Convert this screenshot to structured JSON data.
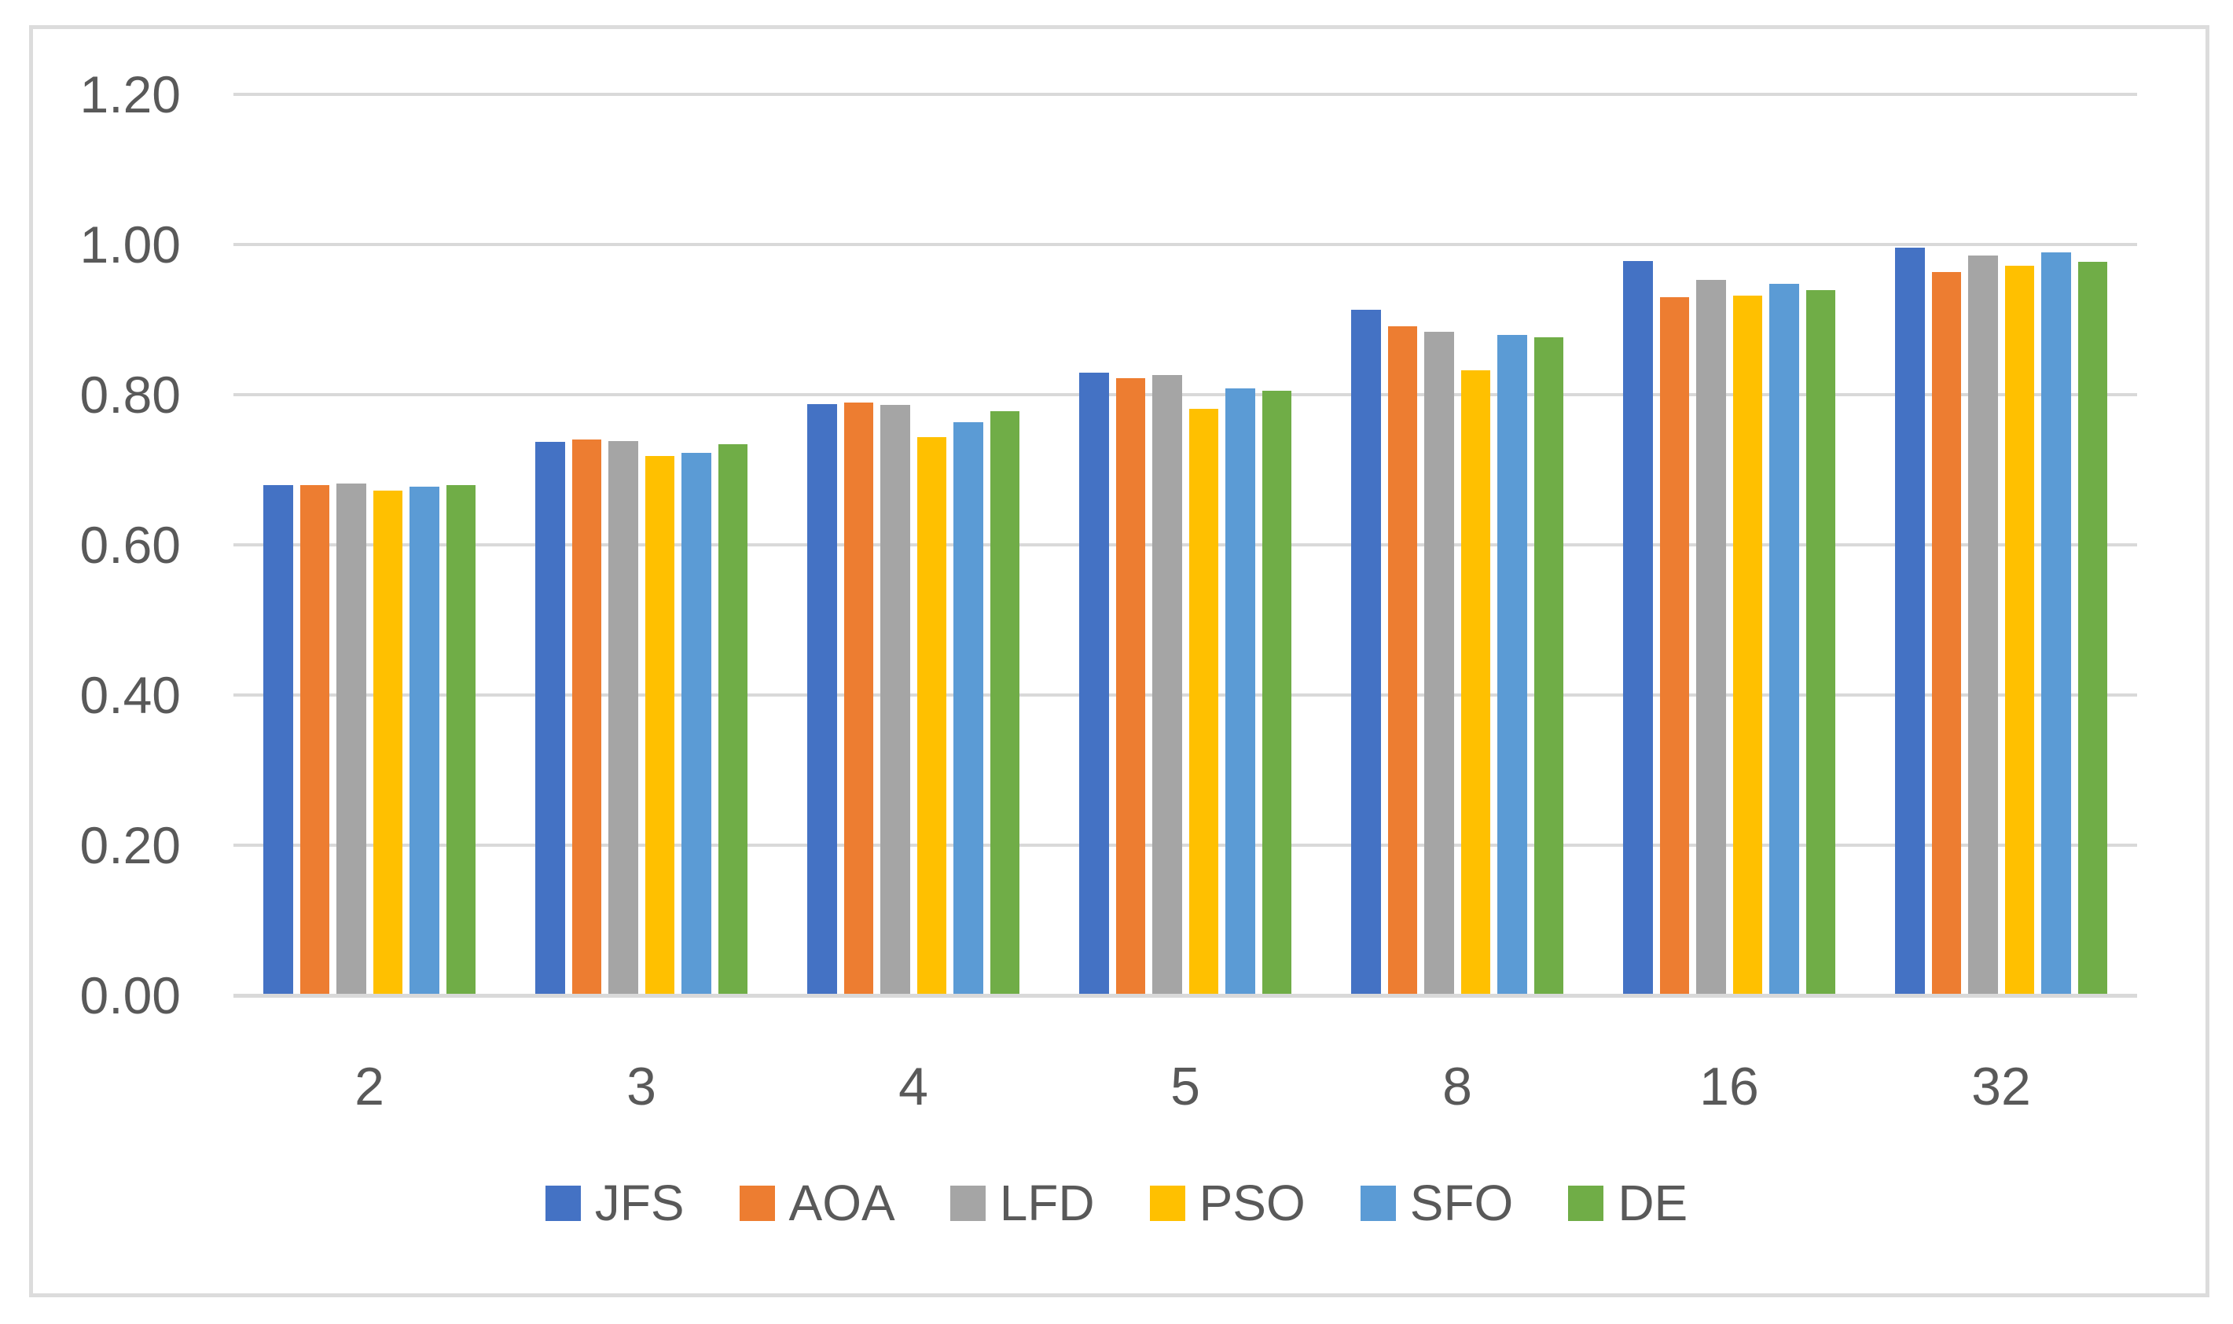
{
  "chart_data": {
    "type": "bar",
    "title": "",
    "xlabel": "",
    "ylabel": "",
    "categories": [
      "2",
      "3",
      "4",
      "5",
      "8",
      "16",
      "32"
    ],
    "series": [
      {
        "name": "JFS",
        "color": "#4472C4",
        "values": [
          0.678,
          0.735,
          0.785,
          0.827,
          0.911,
          0.976,
          0.994
        ]
      },
      {
        "name": "AOA",
        "color": "#ED7D31",
        "values": [
          0.678,
          0.738,
          0.787,
          0.82,
          0.889,
          0.928,
          0.961
        ]
      },
      {
        "name": "LFD",
        "color": "#A5A5A5",
        "values": [
          0.68,
          0.736,
          0.784,
          0.824,
          0.882,
          0.951,
          0.983
        ]
      },
      {
        "name": "PSO",
        "color": "#FFC000",
        "values": [
          0.67,
          0.716,
          0.741,
          0.779,
          0.83,
          0.93,
          0.97
        ]
      },
      {
        "name": "SFO",
        "color": "#5B9BD5",
        "values": [
          0.675,
          0.72,
          0.761,
          0.806,
          0.877,
          0.946,
          0.987
        ]
      },
      {
        "name": "DE",
        "color": "#70AD47",
        "values": [
          0.678,
          0.732,
          0.776,
          0.803,
          0.874,
          0.937,
          0.975
        ]
      }
    ],
    "ylim": [
      0.0,
      1.2
    ],
    "ytick_step": 0.2,
    "ytick_labels": [
      "0.00",
      "0.20",
      "0.40",
      "0.60",
      "0.80",
      "1.00",
      "1.20"
    ],
    "grid": true,
    "legend_position": "bottom",
    "gridline_color": "#D9D9D9",
    "axis_text_color": "#595959",
    "frame_border_color": "#DCDCDC",
    "background_color": "#FFFFFF"
  }
}
